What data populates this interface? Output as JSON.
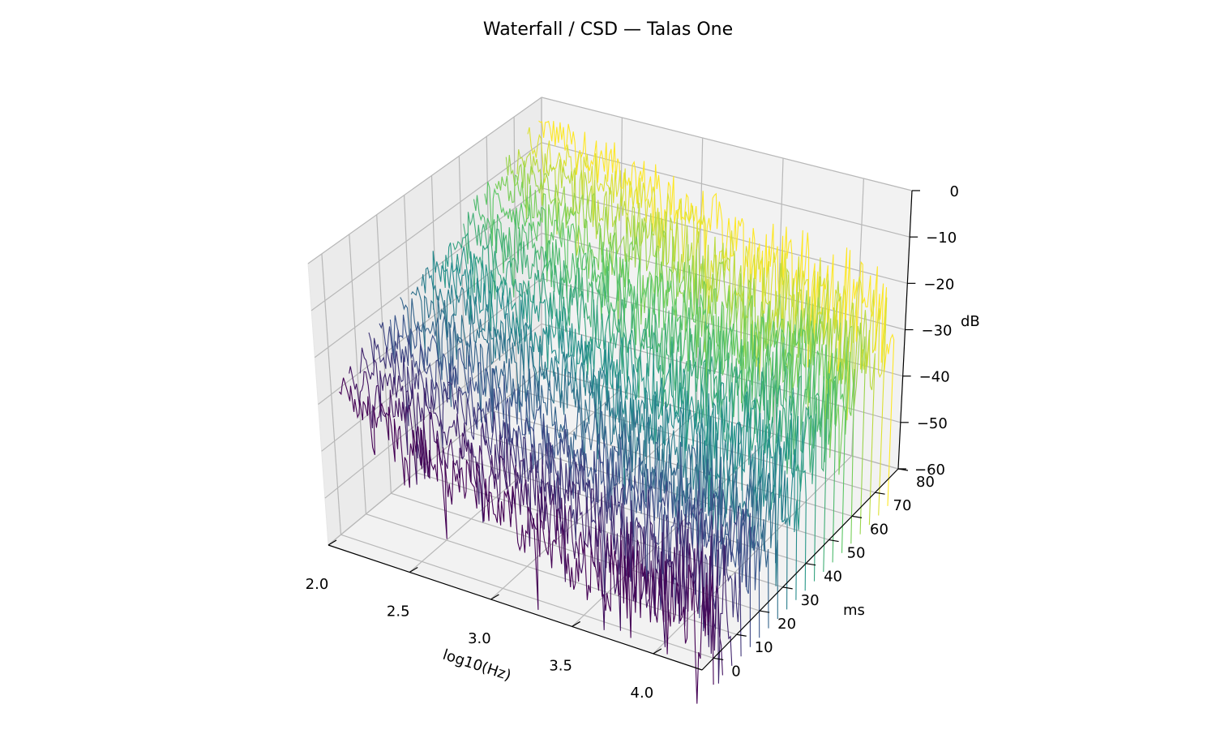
{
  "chart_data": {
    "type": "line",
    "subtype": "waterfall-3d",
    "title": "Waterfall / CSD — Talas One",
    "x_axis": {
      "label": "log10(Hz)",
      "range": [
        2.0,
        4.3
      ],
      "ticks": [
        "2.0",
        "2.5",
        "3.0",
        "3.5",
        "4.0"
      ]
    },
    "y_axis": {
      "label": "ms",
      "range": [
        -5,
        80
      ],
      "ticks": [
        "0",
        "10",
        "20",
        "30",
        "40",
        "50",
        "60",
        "70",
        "80"
      ]
    },
    "z_axis": {
      "label": "dB",
      "range": [
        -60,
        0
      ],
      "ticks": [
        "0",
        "−10",
        "−20",
        "−30",
        "−40",
        "−50",
        "−60"
      ]
    },
    "grid": true,
    "colormap": "viridis",
    "colormap_stops": [
      "#440154",
      "#3b528b",
      "#21918c",
      "#5ec962",
      "#fde725"
    ],
    "slices_ms": [
      0,
      4,
      8,
      12,
      16,
      20,
      24,
      28,
      32,
      36,
      40,
      44,
      48,
      52,
      56,
      60,
      64,
      68,
      72,
      76
    ],
    "spectrum_envelope": {
      "log10_hz": [
        2.05,
        2.5,
        3.0,
        3.5,
        4.0,
        4.3
      ],
      "db_at_0ms": [
        -28,
        -35,
        -42,
        -48,
        -50,
        -52
      ],
      "db_at_76ms": [
        -4,
        -8,
        -14,
        -20,
        -22,
        -28
      ]
    }
  }
}
